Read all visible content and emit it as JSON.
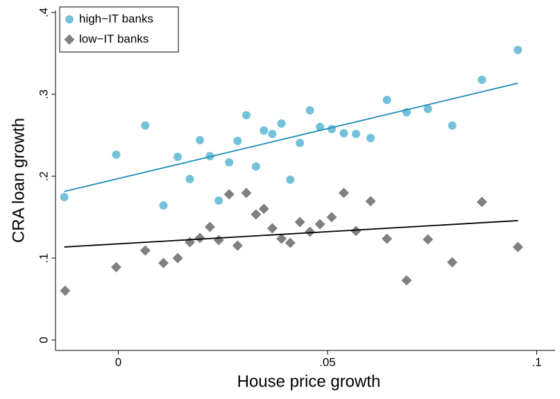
{
  "chart_data": {
    "type": "scatter",
    "x_label": "House price growth",
    "y_label": "CRA loan growth",
    "xlim": [
      -0.015,
      0.1044
    ],
    "ylim": [
      -0.0127,
      0.4025
    ],
    "xticks": [
      0,
      {
        "value": 0.05,
        "label": ".05"
      },
      {
        "value": 0.1,
        "label": ".1"
      }
    ],
    "yticks": [
      0,
      {
        "value": 0.1,
        "label": ".1"
      },
      {
        "value": 0.2,
        "label": ".2"
      },
      {
        "value": 0.3,
        "label": ".3"
      },
      {
        "value": 0.4,
        "label": ".4"
      }
    ],
    "grid": false,
    "legend": "top-left",
    "series": [
      {
        "name": "high−IT banks",
        "color": "#74c2da",
        "marker": "circle",
        "x": [
          -0.0129,
          -0.0005,
          0.00645,
          0.0108,
          0.0142,
          0.0171,
          0.0195,
          0.0219,
          0.024,
          0.0265,
          0.0285,
          0.0306,
          0.0329,
          0.0348,
          0.0368,
          0.039,
          0.0411,
          0.0434,
          0.0458,
          0.0482,
          0.051,
          0.0539,
          0.0568,
          0.0603,
          0.0642,
          0.0689,
          0.074,
          0.0798,
          0.0869,
          0.0955
        ],
        "values": [
          0.1746,
          0.2263,
          0.2619,
          0.1644,
          0.2237,
          0.1966,
          0.2441,
          0.2246,
          0.1703,
          0.2169,
          0.2432,
          0.2746,
          0.2119,
          0.2559,
          0.2517,
          0.2644,
          0.1958,
          0.2407,
          0.2805,
          0.2602,
          0.2576,
          0.2525,
          0.2517,
          0.2466,
          0.2932,
          0.278,
          0.2822,
          0.2619,
          0.3178,
          0.3542
        ]
      },
      {
        "name": "low−IT banks",
        "color": "#808080",
        "marker": "diamond",
        "x": [
          -0.0127,
          -0.0005,
          0.00645,
          0.0108,
          0.0142,
          0.0171,
          0.0195,
          0.0219,
          0.024,
          0.0265,
          0.0285,
          0.0306,
          0.0329,
          0.0348,
          0.0368,
          0.039,
          0.0411,
          0.0434,
          0.0458,
          0.0482,
          0.051,
          0.0539,
          0.0568,
          0.0603,
          0.0642,
          0.0689,
          0.074,
          0.0798,
          0.0869,
          0.0955
        ],
        "values": [
          0.0602,
          0.089,
          0.1093,
          0.0941,
          0.1,
          0.1195,
          0.1246,
          0.1381,
          0.122,
          0.178,
          0.1153,
          0.1797,
          0.1534,
          0.1602,
          0.1364,
          0.1237,
          0.1186,
          0.1441,
          0.1322,
          0.1415,
          0.15,
          0.1797,
          0.1331,
          0.1695,
          0.1237,
          0.0729,
          0.1229,
          0.0949,
          0.1686,
          0.1136
        ]
      }
    ],
    "fits": [
      {
        "color": "#1a8ab8",
        "x": [
          -0.0129,
          0.0955
        ],
        "values": [
          0.1814,
          0.3136
        ]
      },
      {
        "color": "#000000",
        "x": [
          -0.0129,
          0.0955
        ],
        "values": [
          0.1136,
          0.1458
        ]
      }
    ]
  }
}
